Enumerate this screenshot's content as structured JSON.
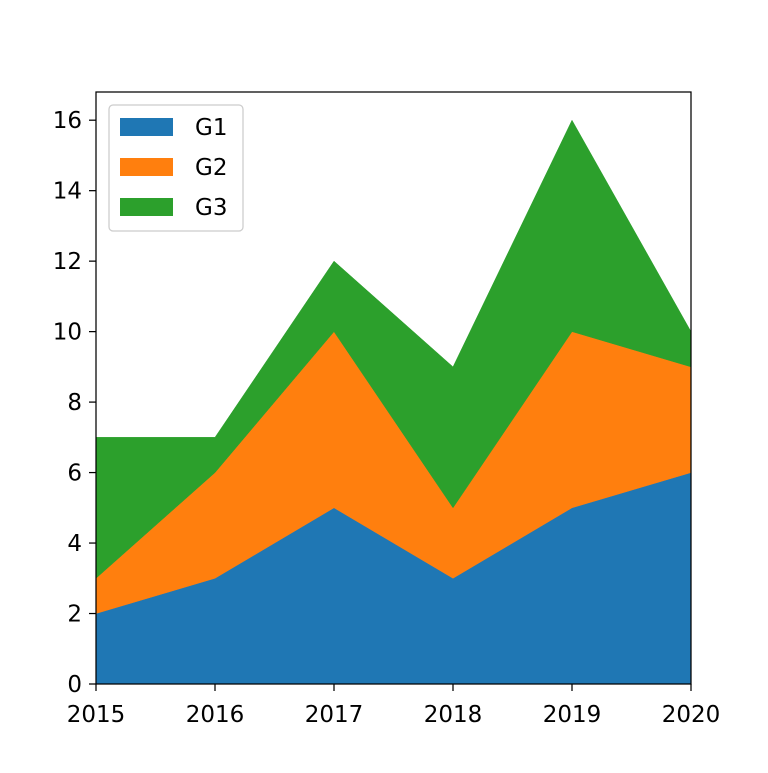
{
  "chart_data": {
    "type": "area",
    "stacked": true,
    "x": [
      2015,
      2016,
      2017,
      2018,
      2019,
      2020
    ],
    "xlim": [
      2015,
      2020
    ],
    "ylim": [
      0,
      16.8
    ],
    "xticks": [
      "2015",
      "2016",
      "2017",
      "2018",
      "2019",
      "2020"
    ],
    "yticks": [
      "0",
      "2",
      "4",
      "6",
      "8",
      "10",
      "12",
      "14",
      "16"
    ],
    "title": "",
    "xlabel": "",
    "ylabel": "",
    "grid": false,
    "legend_position": "top-left",
    "series": [
      {
        "name": "G1",
        "color": "#1f77b4",
        "values": [
          2,
          3,
          5,
          3,
          5,
          6
        ]
      },
      {
        "name": "G2",
        "color": "#ff7f0e",
        "values": [
          1,
          3,
          5,
          2,
          5,
          3
        ]
      },
      {
        "name": "G3",
        "color": "#2ca02c",
        "values": [
          4,
          1,
          2,
          4,
          6,
          1
        ]
      }
    ]
  }
}
